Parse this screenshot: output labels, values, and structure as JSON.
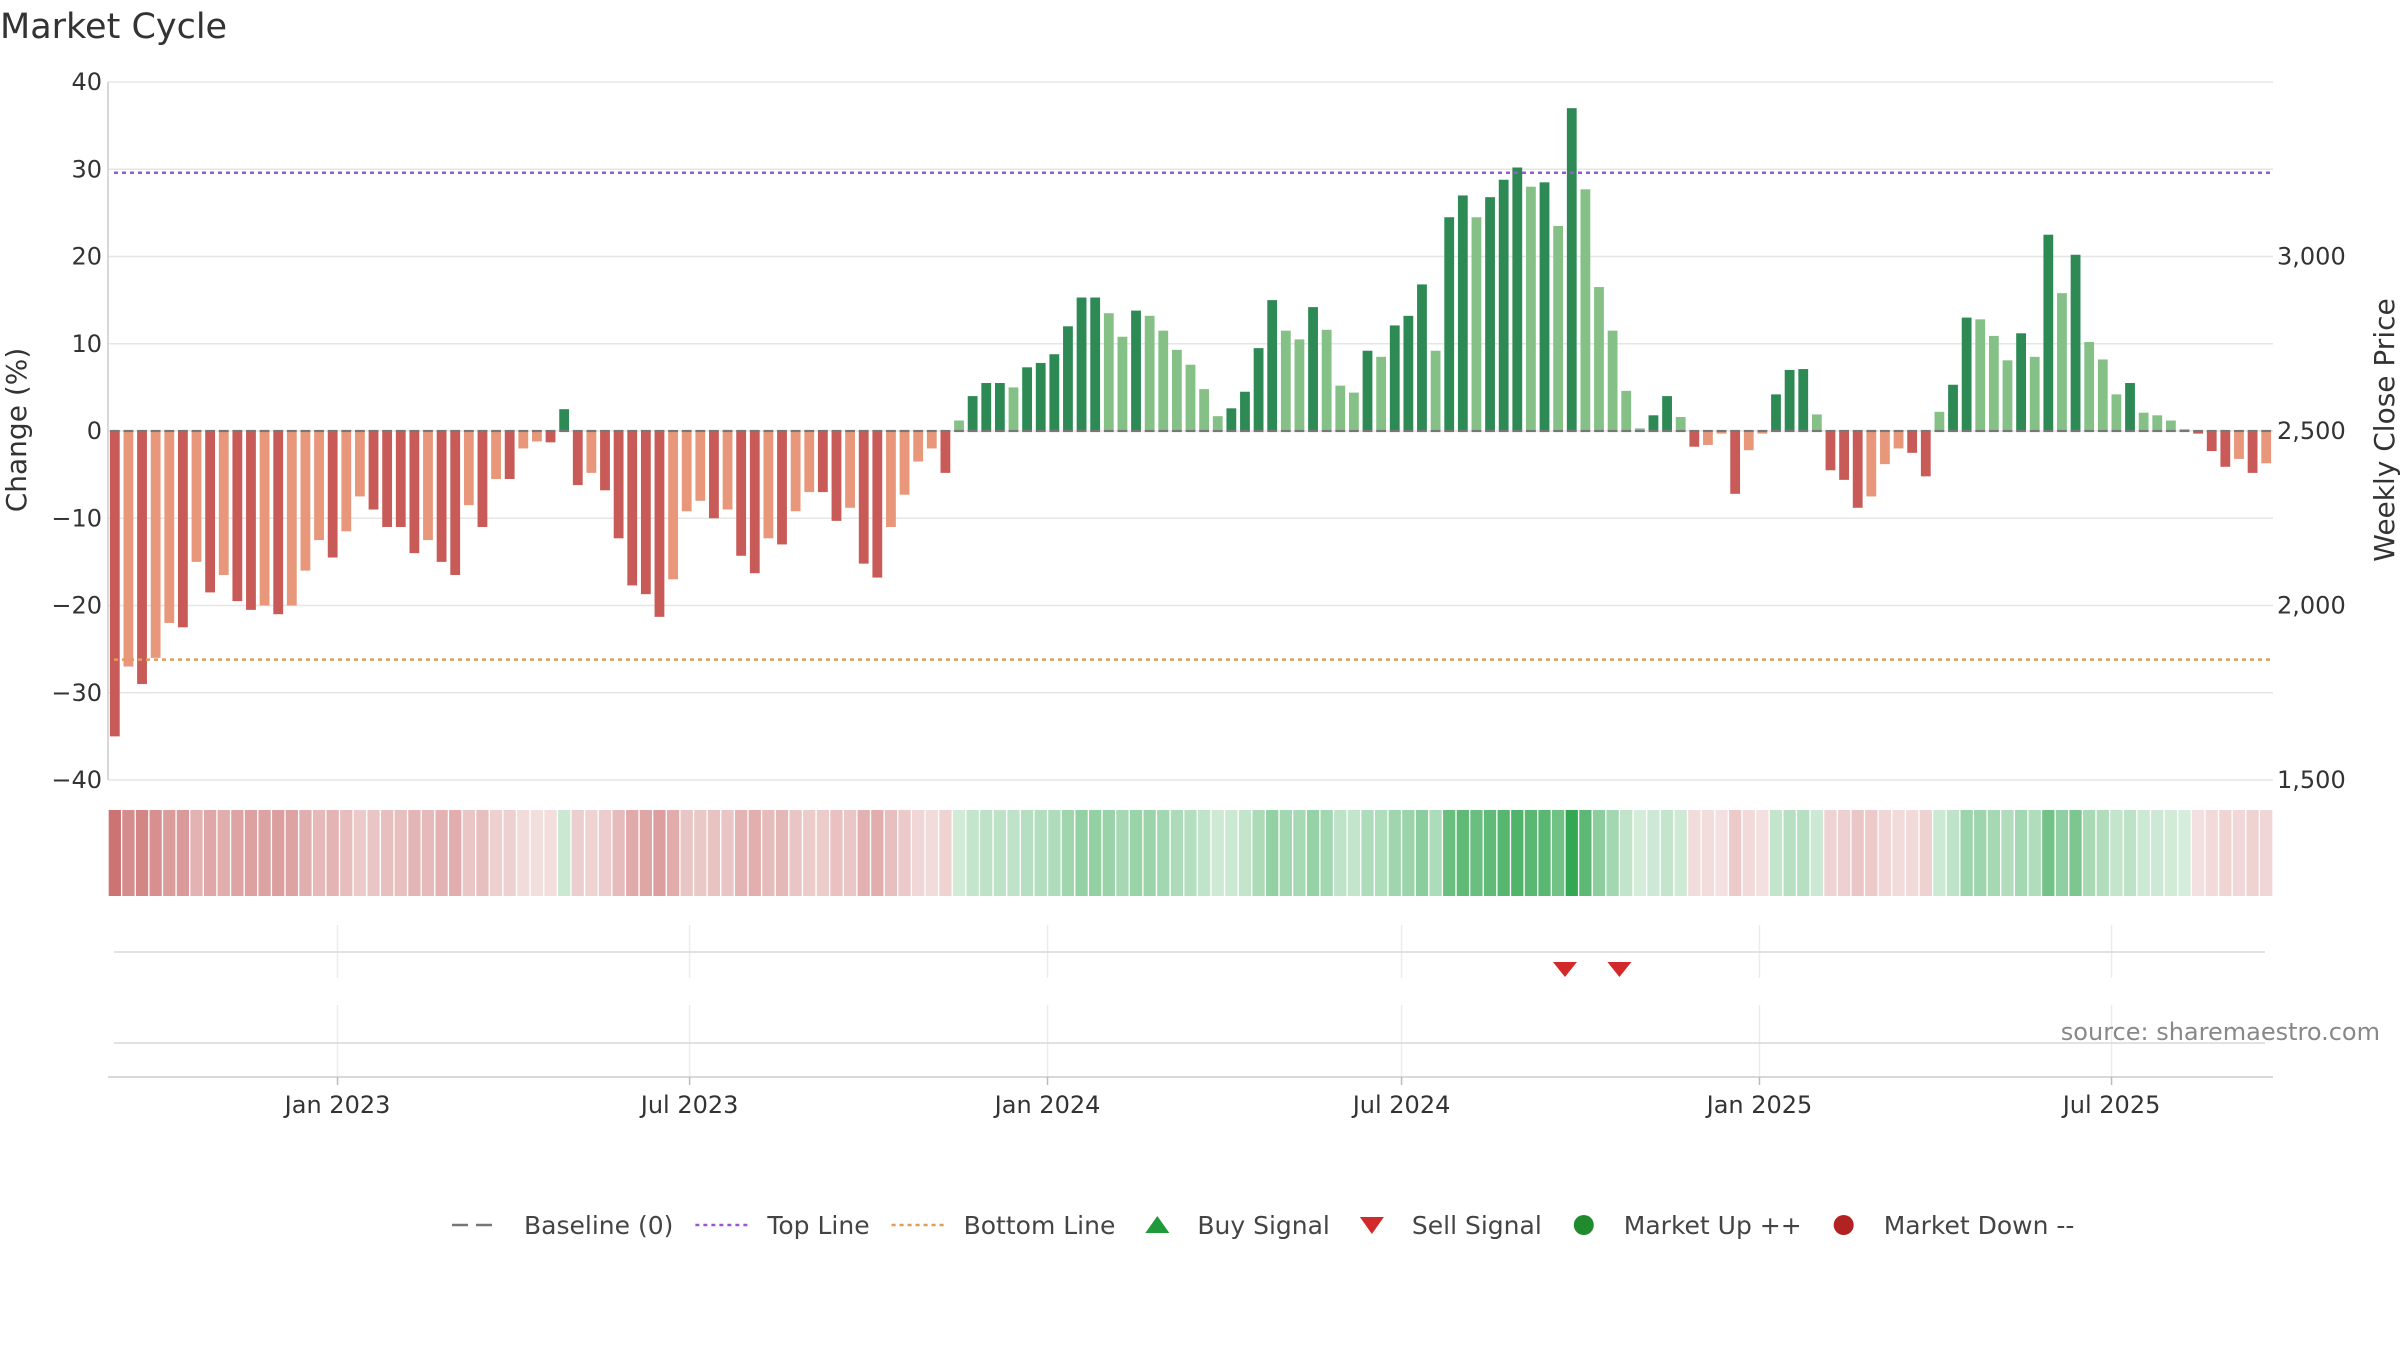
{
  "chart_data": {
    "type": "bar",
    "title": "Market Cycle",
    "ylabel_left": "Change (%)",
    "ylabel_right": "Weekly Close Price",
    "ylim": [
      -40,
      40
    ],
    "yticks": [
      "40",
      "30",
      "20",
      "10",
      "0",
      "−10",
      "−20",
      "−30",
      "−40"
    ],
    "ylim_right": [
      1500,
      3500
    ],
    "yticks_right": [
      "3,000",
      "2,500",
      "2,000",
      "1,500"
    ],
    "x_range": [
      "2022-09-05",
      "2025-09-22"
    ],
    "xticks": [
      {
        "date": "2023-01-01",
        "label": "Jan 2023"
      },
      {
        "date": "2023-07-01",
        "label": "Jul 2023"
      },
      {
        "date": "2024-01-01",
        "label": "Jan 2024"
      },
      {
        "date": "2024-07-01",
        "label": "Jul 2024"
      },
      {
        "date": "2025-01-01",
        "label": "Jan 2025"
      },
      {
        "date": "2025-07-01",
        "label": "Jul 2025"
      }
    ],
    "reference_lines": [
      {
        "name": "Baseline (0)",
        "value": 0,
        "color": "#777777",
        "style": "dash"
      },
      {
        "name": "Top Line",
        "value": 29.6,
        "color": "#9b59d0",
        "style": "dot"
      },
      {
        "name": "Bottom Line",
        "value": -26.2,
        "color": "#e69a5a",
        "style": "dot"
      }
    ],
    "bar_colors": {
      "down_strong": "#c85a57",
      "down_weak": "#e8977a",
      "up_strong": "#2e8a55",
      "up_weak": "#85c187"
    },
    "heat_colors": {
      "negative": "#c96a6a",
      "positive": "#2fa54e"
    },
    "sell_signals": [
      "2024-09-23",
      "2024-10-21"
    ],
    "buy_signals": [],
    "weekly_change": [
      -35,
      -27,
      -29,
      -26,
      -22,
      -22.5,
      -15,
      -18.5,
      -16.5,
      -19.5,
      -20.5,
      -20,
      -21,
      -20,
      -16,
      -12.5,
      -14.5,
      -11.5,
      -7.5,
      -9,
      -11,
      -11,
      -14,
      -12.5,
      -15,
      -16.5,
      -8.5,
      -11,
      -5.5,
      -5.5,
      -2,
      -1.2,
      -1.3,
      2.5,
      -6.2,
      -4.8,
      -6.8,
      -12.3,
      -17.7,
      -18.7,
      -21.3,
      -17,
      -9.2,
      -8,
      -10,
      -9,
      -14.3,
      -16.3,
      -12.3,
      -13,
      -9.2,
      -7,
      -7,
      -10.3,
      -8.8,
      -15.2,
      -16.8,
      -11,
      -7.3,
      -3.5,
      -2,
      -4.8,
      1.2,
      4,
      5.5,
      5.5,
      5,
      7.3,
      7.8,
      8.8,
      12,
      15.3,
      15.3,
      13.5,
      10.8,
      13.8,
      13.2,
      11.5,
      9.3,
      7.6,
      4.8,
      1.7,
      2.6,
      4.5,
      9.5,
      15,
      11.5,
      10.5,
      14.2,
      11.6,
      5.2,
      4.4,
      9.2,
      8.5,
      12.1,
      13.2,
      16.8,
      9.2,
      24.5,
      27,
      24.5,
      26.8,
      28.8,
      30.2,
      28,
      28.5,
      23.5,
      37,
      27.7,
      16.5,
      11.5,
      4.6,
      0.3,
      1.8,
      4,
      1.6,
      -1.8,
      -1.6,
      -0.3,
      -7.2,
      -2.2,
      -0.3,
      4.2,
      7,
      7.1,
      1.9,
      -4.5,
      -5.6,
      -8.8,
      -7.5,
      -3.8,
      -2,
      -2.5,
      -5.2,
      2.2,
      5.3,
      13,
      12.8,
      10.9,
      8.1,
      11.2,
      8.5,
      22.5,
      15.8,
      20.2,
      10.2,
      8.2,
      4.2,
      5.5,
      2.1,
      1.8,
      1.2,
      0.2,
      -0.3,
      -2.3,
      -4.1,
      -3.2,
      -4.8,
      -3.7
    ],
    "legend": [
      {
        "label": "Baseline (0)",
        "marker": "dash",
        "color": "#777777"
      },
      {
        "label": "Top Line",
        "marker": "dotted",
        "color": "#9b59d0"
      },
      {
        "label": "Bottom Line",
        "marker": "dotted",
        "color": "#e69a5a"
      },
      {
        "label": "Buy Signal",
        "marker": "triangle-up",
        "color": "#1e9a3a"
      },
      {
        "label": "Sell Signal",
        "marker": "triangle-down",
        "color": "#d22a2a"
      },
      {
        "label": "Market Up ++",
        "marker": "circle",
        "color": "#1f8a2e"
      },
      {
        "label": "Market Down --",
        "marker": "circle",
        "color": "#b22222"
      }
    ],
    "source": "source: sharemaestro.com"
  }
}
